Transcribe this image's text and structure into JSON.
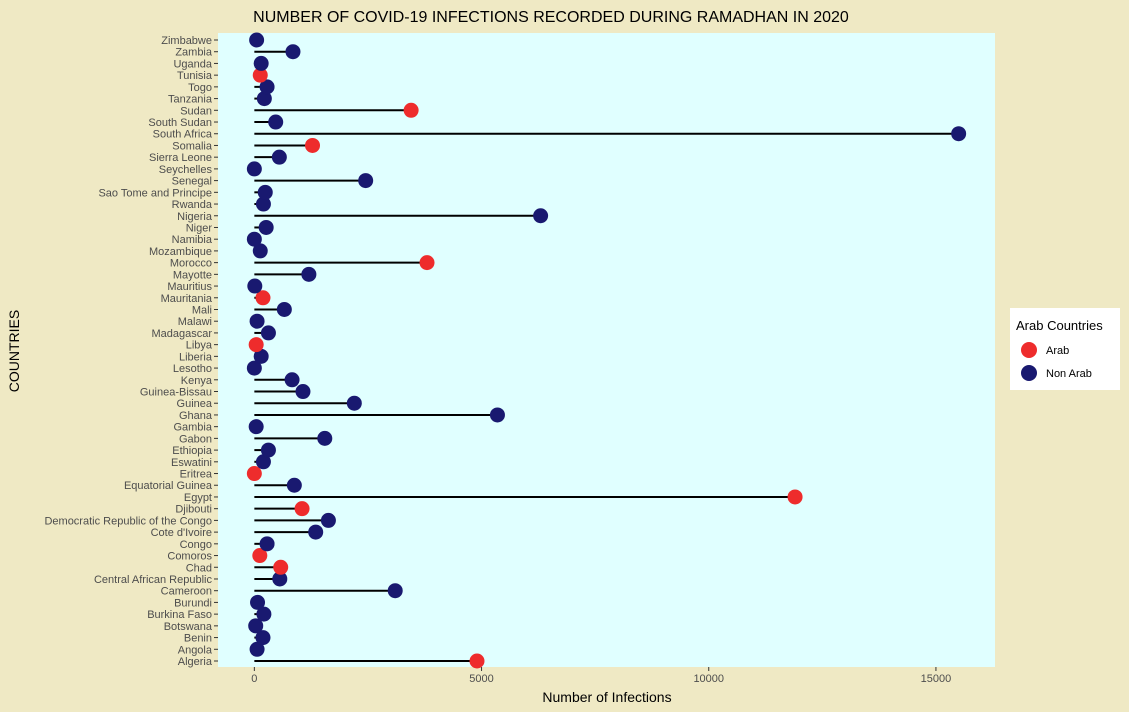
{
  "chart_data": {
    "type": "lollipop",
    "title": "NUMBER OF COVID-19 INFECTIONS RECORDED DURING RAMADHAN IN 2020",
    "xlabel": "Number of Infections",
    "ylabel": "COUNTRIES",
    "xlim": [
      -800,
      16300
    ],
    "x_ticks": [
      0,
      5000,
      10000,
      15000
    ],
    "grid": false,
    "panel_color": "#e0ffff",
    "legend": {
      "title": "Arab Countries",
      "position": "right",
      "entries": [
        {
          "label": "Arab",
          "color": "#ee2c2c"
        },
        {
          "label": "Non Arab",
          "color": "#191970"
        }
      ]
    },
    "categories": [
      "Algeria",
      "Angola",
      "Benin",
      "Botswana",
      "Burkina Faso",
      "Burundi",
      "Cameroon",
      "Central African Republic",
      "Chad",
      "Comoros",
      "Congo",
      "Cote d'Ivoire",
      "Democratic Republic of the Congo",
      "Djibouti",
      "Egypt",
      "Equatorial Guinea",
      "Eritrea",
      "Eswatini",
      "Ethiopia",
      "Gabon",
      "Gambia",
      "Ghana",
      "Guinea",
      "Guinea-Bissau",
      "Kenya",
      "Lesotho",
      "Liberia",
      "Libya",
      "Madagascar",
      "Malawi",
      "Mali",
      "Mauritania",
      "Mauritius",
      "Mayotte",
      "Morocco",
      "Mozambique",
      "Namibia",
      "Niger",
      "Nigeria",
      "Rwanda",
      "Sao Tome and Principe",
      "Senegal",
      "Seychelles",
      "Sierra Leone",
      "Somalia",
      "South Africa",
      "South Sudan",
      "Sudan",
      "Tanzania",
      "Togo",
      "Tunisia",
      "Uganda",
      "Zambia",
      "Zimbabwe"
    ],
    "values": [
      4900,
      60,
      190,
      30,
      210,
      70,
      3100,
      560,
      580,
      120,
      280,
      1350,
      1630,
      1050,
      11900,
      880,
      0,
      200,
      310,
      1550,
      40,
      5350,
      2200,
      1070,
      830,
      0,
      150,
      40,
      310,
      60,
      660,
      190,
      10,
      1200,
      3800,
      130,
      0,
      260,
      6300,
      200,
      240,
      2450,
      0,
      550,
      1280,
      15500,
      470,
      3450,
      220,
      280,
      130,
      150,
      850,
      50
    ],
    "groups": [
      "Arab",
      "Non Arab",
      "Non Arab",
      "Non Arab",
      "Non Arab",
      "Non Arab",
      "Non Arab",
      "Non Arab",
      "Arab",
      "Arab",
      "Non Arab",
      "Non Arab",
      "Non Arab",
      "Arab",
      "Arab",
      "Non Arab",
      "Arab",
      "Non Arab",
      "Non Arab",
      "Non Arab",
      "Non Arab",
      "Non Arab",
      "Non Arab",
      "Non Arab",
      "Non Arab",
      "Non Arab",
      "Non Arab",
      "Arab",
      "Non Arab",
      "Non Arab",
      "Non Arab",
      "Arab",
      "Non Arab",
      "Non Arab",
      "Arab",
      "Non Arab",
      "Non Arab",
      "Non Arab",
      "Non Arab",
      "Non Arab",
      "Non Arab",
      "Non Arab",
      "Non Arab",
      "Non Arab",
      "Arab",
      "Non Arab",
      "Non Arab",
      "Arab",
      "Non Arab",
      "Non Arab",
      "Arab",
      "Non Arab",
      "Non Arab",
      "Non Arab"
    ]
  }
}
